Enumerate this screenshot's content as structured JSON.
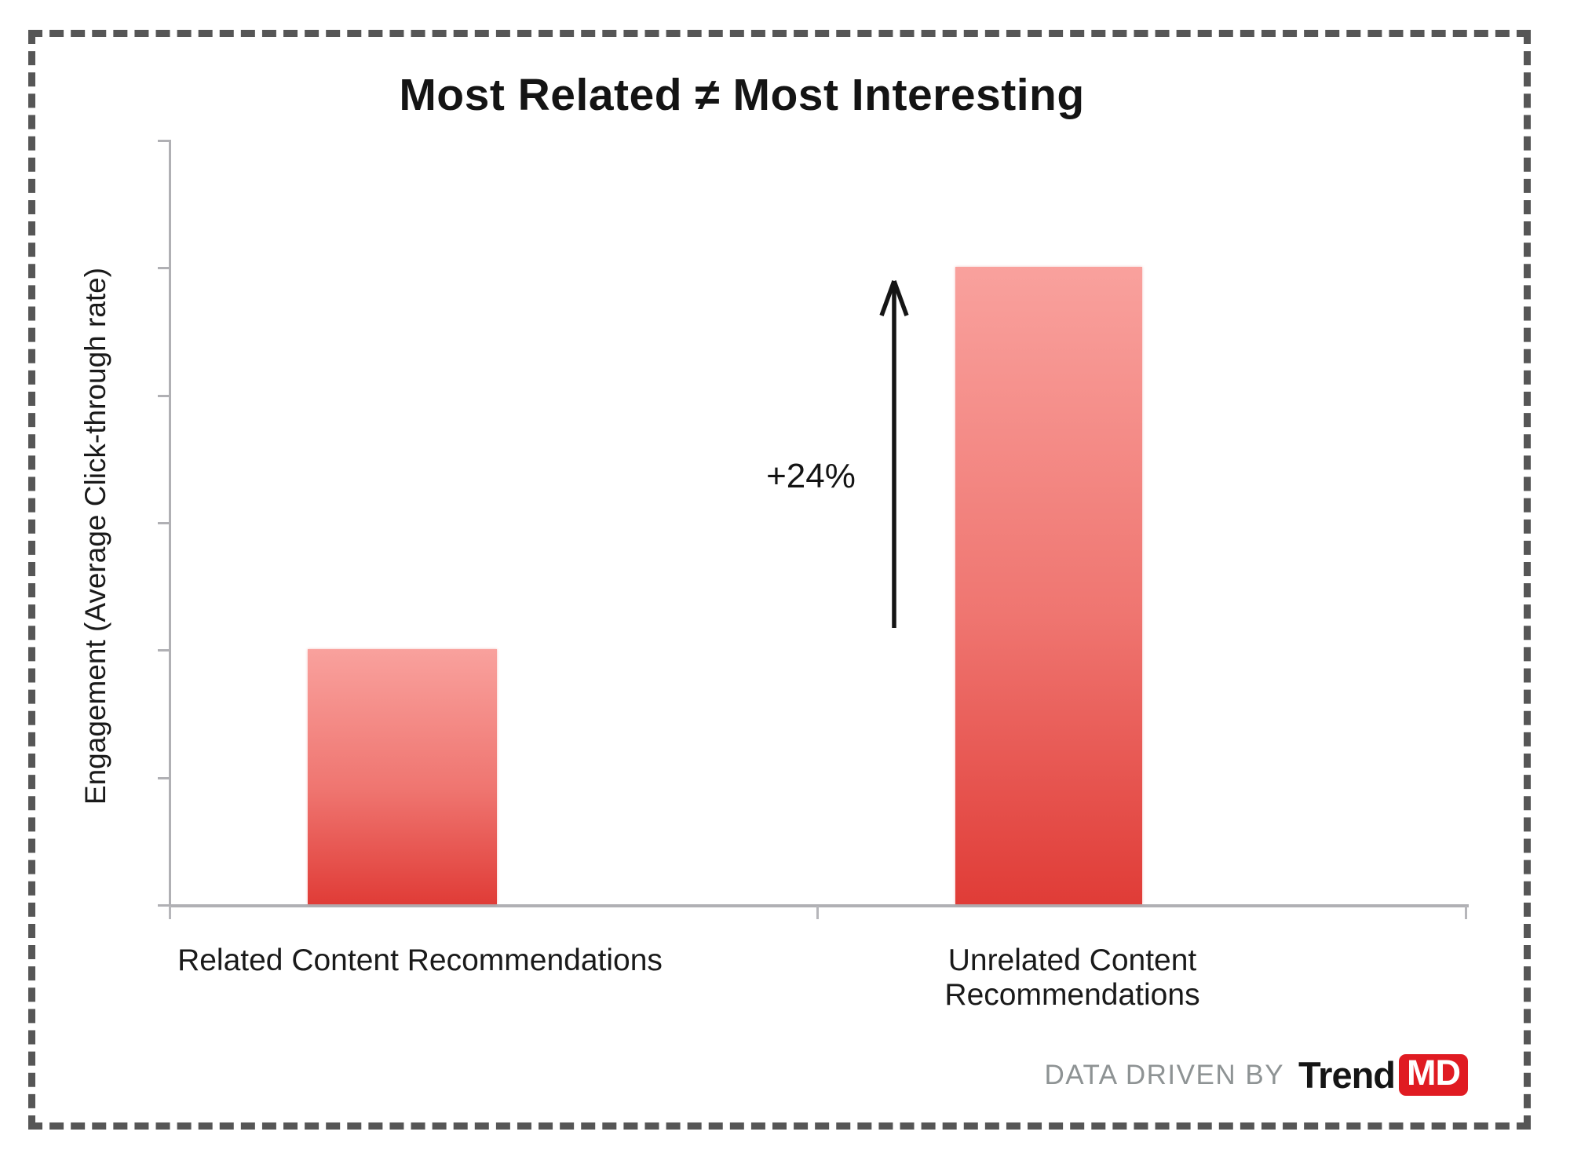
{
  "title": "Most Related ≠ Most Interesting",
  "y_axis": {
    "label": "Engagement (Average Click-through rate)"
  },
  "x_axis": {
    "categories": [
      {
        "label": "Related Content Recommendations"
      },
      {
        "label": "Unrelated Content Recommendations"
      }
    ]
  },
  "annotation": {
    "label": "+24%"
  },
  "footer": {
    "credit": "DATA DRIVEN BY",
    "brand": "Trend",
    "brand_badge": "MD"
  },
  "colors": {
    "bar_gradient_top": "#f9a19d",
    "bar_gradient_bottom": "#e03c37",
    "badge_red": "#e01b22",
    "axis_gray": "#b0b0b4",
    "border_dash_gray": "#565656",
    "credit_gray": "#8e9394",
    "text_dark": "#141414"
  },
  "chart_data": {
    "type": "bar",
    "title": "Most Related ≠ Most Interesting",
    "ylabel": "Engagement (Average Click-through rate)",
    "xlabel": "",
    "categories": [
      "Related Content Recommendations",
      "Unrelated Content Recommendations"
    ],
    "values": [
      2,
      5
    ],
    "value_note": "heights read in y-gridline units; axis has 7 unlabeled ticks, no numeric scale shown",
    "ylim": [
      0,
      6
    ],
    "ytick_count": 7,
    "ytick_labels_shown": false,
    "grid": false,
    "legend": false,
    "annotations": [
      {
        "text": "+24%",
        "shape": "vertical-up-arrow",
        "position": "left of second bar"
      }
    ]
  }
}
